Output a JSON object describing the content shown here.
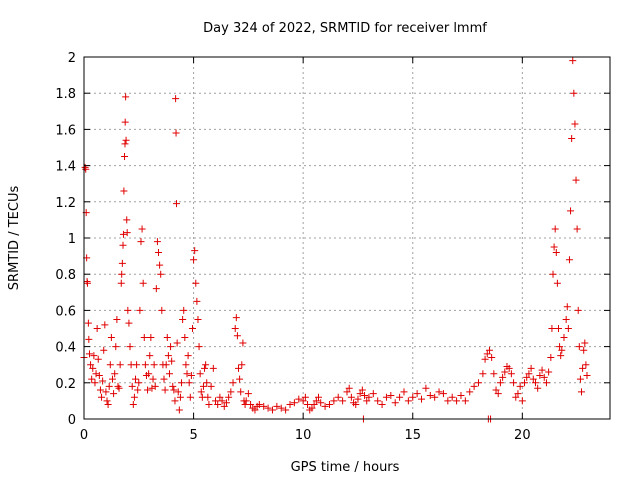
{
  "chart_data": {
    "type": "scatter",
    "title": "Day 324 of 2022, SRMTID for receiver lmmf",
    "xlabel": "GPS time / hours",
    "ylabel": "SRMTID / TECUs",
    "xlim": [
      0,
      24
    ],
    "ylim": [
      0,
      2
    ],
    "xticks": [
      0,
      5,
      10,
      15,
      20
    ],
    "xtick_labels": [
      "0",
      "5",
      "10",
      "15",
      "20"
    ],
    "yticks": [
      0,
      0.2,
      0.4,
      0.6,
      0.8,
      1,
      1.2,
      1.4,
      1.6,
      1.8,
      2
    ],
    "ytick_labels": [
      "0",
      "0.2",
      "0.4",
      "0.6",
      "0.8",
      "1",
      "1.2",
      "1.4",
      "1.6",
      "1.8",
      "2"
    ],
    "grid": true,
    "marker": "+",
    "color": "#e00000",
    "series": [
      {
        "name": "SRMTID",
        "points": [
          [
            0.0,
            0.34
          ],
          [
            0.05,
            1.39
          ],
          [
            0.08,
            1.38
          ],
          [
            0.1,
            1.14
          ],
          [
            0.12,
            0.89
          ],
          [
            0.14,
            0.76
          ],
          [
            0.16,
            0.75
          ],
          [
            0.2,
            0.53
          ],
          [
            0.22,
            0.44
          ],
          [
            0.25,
            0.36
          ],
          [
            0.3,
            0.3
          ],
          [
            0.35,
            0.22
          ],
          [
            0.4,
            0.28
          ],
          [
            0.45,
            0.35
          ],
          [
            0.5,
            0.2
          ],
          [
            0.55,
            0.25
          ],
          [
            0.6,
            0.5
          ],
          [
            0.65,
            0.33
          ],
          [
            0.7,
            0.24
          ],
          [
            0.75,
            0.16
          ],
          [
            0.8,
            0.12
          ],
          [
            0.85,
            0.21
          ],
          [
            0.9,
            0.38
          ],
          [
            0.95,
            0.52
          ],
          [
            1.0,
            0.15
          ],
          [
            1.05,
            0.1
          ],
          [
            1.1,
            0.08
          ],
          [
            1.15,
            0.18
          ],
          [
            1.2,
            0.3
          ],
          [
            1.25,
            0.45
          ],
          [
            1.3,
            0.22
          ],
          [
            1.35,
            0.14
          ],
          [
            1.4,
            0.25
          ],
          [
            1.45,
            0.4
          ],
          [
            1.5,
            0.55
          ],
          [
            1.55,
            0.18
          ],
          [
            1.6,
            0.17
          ],
          [
            1.65,
            0.3
          ],
          [
            1.7,
            0.75
          ],
          [
            1.72,
            0.8
          ],
          [
            1.75,
            0.86
          ],
          [
            1.78,
            0.96
          ],
          [
            1.8,
            1.02
          ],
          [
            1.82,
            1.26
          ],
          [
            1.85,
            1.45
          ],
          [
            1.87,
            1.52
          ],
          [
            1.88,
            1.64
          ],
          [
            1.9,
            1.78
          ],
          [
            1.92,
            1.54
          ],
          [
            1.95,
            1.1
          ],
          [
            1.97,
            1.03
          ],
          [
            2.0,
            0.6
          ],
          [
            2.05,
            0.53
          ],
          [
            2.1,
            0.4
          ],
          [
            2.15,
            0.3
          ],
          [
            2.2,
            0.18
          ],
          [
            2.25,
            0.08
          ],
          [
            2.3,
            0.12
          ],
          [
            2.35,
            0.22
          ],
          [
            2.4,
            0.3
          ],
          [
            2.45,
            0.16
          ],
          [
            2.5,
            0.2
          ],
          [
            2.55,
            0.6
          ],
          [
            2.6,
            0.98
          ],
          [
            2.65,
            1.05
          ],
          [
            2.7,
            0.75
          ],
          [
            2.75,
            0.45
          ],
          [
            2.8,
            0.3
          ],
          [
            2.85,
            0.24
          ],
          [
            2.9,
            0.16
          ],
          [
            2.95,
            0.25
          ],
          [
            3.0,
            0.35
          ],
          [
            3.05,
            0.45
          ],
          [
            3.1,
            0.17
          ],
          [
            3.15,
            0.22
          ],
          [
            3.2,
            0.3
          ],
          [
            3.25,
            0.18
          ],
          [
            3.3,
            0.72
          ],
          [
            3.35,
            0.98
          ],
          [
            3.4,
            0.92
          ],
          [
            3.45,
            0.85
          ],
          [
            3.5,
            0.8
          ],
          [
            3.55,
            0.6
          ],
          [
            3.6,
            0.3
          ],
          [
            3.65,
            0.22
          ],
          [
            3.7,
            0.16
          ],
          [
            3.75,
            0.3
          ],
          [
            3.8,
            0.45
          ],
          [
            3.85,
            0.35
          ],
          [
            3.9,
            0.25
          ],
          [
            3.95,
            0.4
          ],
          [
            4.0,
            0.32
          ],
          [
            4.05,
            0.18
          ],
          [
            4.1,
            0.16
          ],
          [
            4.15,
            0.1
          ],
          [
            4.18,
            1.77
          ],
          [
            4.2,
            1.58
          ],
          [
            4.22,
            1.19
          ],
          [
            4.25,
            0.42
          ],
          [
            4.3,
            0.15
          ],
          [
            4.35,
            0.05
          ],
          [
            4.4,
            0.12
          ],
          [
            4.45,
            0.2
          ],
          [
            4.5,
            0.55
          ],
          [
            4.55,
            0.6
          ],
          [
            4.6,
            0.45
          ],
          [
            4.65,
            0.3
          ],
          [
            4.7,
            0.25
          ],
          [
            4.75,
            0.35
          ],
          [
            4.8,
            0.2
          ],
          [
            4.85,
            0.12
          ],
          [
            4.9,
            0.24
          ],
          [
            4.95,
            0.5
          ],
          [
            5.0,
            0.88
          ],
          [
            5.05,
            0.93
          ],
          [
            5.1,
            0.75
          ],
          [
            5.15,
            0.65
          ],
          [
            5.2,
            0.55
          ],
          [
            5.25,
            0.4
          ],
          [
            5.3,
            0.25
          ],
          [
            5.35,
            0.15
          ],
          [
            5.4,
            0.12
          ],
          [
            5.45,
            0.18
          ],
          [
            5.5,
            0.28
          ],
          [
            5.55,
            0.3
          ],
          [
            5.6,
            0.2
          ],
          [
            5.65,
            0.12
          ],
          [
            5.7,
            0.08
          ],
          [
            5.8,
            0.18
          ],
          [
            5.9,
            0.28
          ],
          [
            6.0,
            0.1
          ],
          [
            6.1,
            0.08
          ],
          [
            6.2,
            0.12
          ],
          [
            6.3,
            0.1
          ],
          [
            6.4,
            0.07
          ],
          [
            6.5,
            0.09
          ],
          [
            6.6,
            0.12
          ],
          [
            6.7,
            0.15
          ],
          [
            6.8,
            0.2
          ],
          [
            6.9,
            0.5
          ],
          [
            6.95,
            0.56
          ],
          [
            7.0,
            0.46
          ],
          [
            7.05,
            0.28
          ],
          [
            7.1,
            0.22
          ],
          [
            7.15,
            0.15
          ],
          [
            7.2,
            0.3
          ],
          [
            7.25,
            0.42
          ],
          [
            7.3,
            0.1
          ],
          [
            7.35,
            0.08
          ],
          [
            7.4,
            0.1
          ],
          [
            7.5,
            0.14
          ],
          [
            7.6,
            0.08
          ],
          [
            7.7,
            0.06
          ],
          [
            7.8,
            0.05
          ],
          [
            7.9,
            0.07
          ],
          [
            8.0,
            0.08
          ],
          [
            8.2,
            0.07
          ],
          [
            8.4,
            0.06
          ],
          [
            8.6,
            0.05
          ],
          [
            8.8,
            0.07
          ],
          [
            9.0,
            0.06
          ],
          [
            9.2,
            0.05
          ],
          [
            9.4,
            0.08
          ],
          [
            9.6,
            0.09
          ],
          [
            9.8,
            0.11
          ],
          [
            10.0,
            0.1
          ],
          [
            10.1,
            0.12
          ],
          [
            10.2,
            0.08
          ],
          [
            10.3,
            0.05
          ],
          [
            10.4,
            0.06
          ],
          [
            10.5,
            0.08
          ],
          [
            10.6,
            0.1
          ],
          [
            10.7,
            0.12
          ],
          [
            10.8,
            0.09
          ],
          [
            11.0,
            0.07
          ],
          [
            11.2,
            0.08
          ],
          [
            11.4,
            0.1
          ],
          [
            11.6,
            0.12
          ],
          [
            11.8,
            0.1
          ],
          [
            12.0,
            0.15
          ],
          [
            12.1,
            0.17
          ],
          [
            12.2,
            0.12
          ],
          [
            12.3,
            0.09
          ],
          [
            12.4,
            0.08
          ],
          [
            12.5,
            0.11
          ],
          [
            12.6,
            0.14
          ],
          [
            12.7,
            0.16
          ],
          [
            12.75,
            0.0
          ],
          [
            12.8,
            0.13
          ],
          [
            12.9,
            0.1
          ],
          [
            13.0,
            0.12
          ],
          [
            13.2,
            0.14
          ],
          [
            13.4,
            0.1
          ],
          [
            13.6,
            0.08
          ],
          [
            13.8,
            0.12
          ],
          [
            14.0,
            0.13
          ],
          [
            14.2,
            0.09
          ],
          [
            14.4,
            0.12
          ],
          [
            14.6,
            0.15
          ],
          [
            14.8,
            0.1
          ],
          [
            15.0,
            0.12
          ],
          [
            15.2,
            0.14
          ],
          [
            15.4,
            0.11
          ],
          [
            15.6,
            0.17
          ],
          [
            15.8,
            0.13
          ],
          [
            16.0,
            0.12
          ],
          [
            16.2,
            0.15
          ],
          [
            16.4,
            0.14
          ],
          [
            16.6,
            0.1
          ],
          [
            16.8,
            0.12
          ],
          [
            17.0,
            0.1
          ],
          [
            17.2,
            0.13
          ],
          [
            17.4,
            0.1
          ],
          [
            17.6,
            0.15
          ],
          [
            17.8,
            0.18
          ],
          [
            18.0,
            0.2
          ],
          [
            18.2,
            0.25
          ],
          [
            18.3,
            0.33
          ],
          [
            18.4,
            0.36
          ],
          [
            18.45,
            0.0
          ],
          [
            18.5,
            0.38
          ],
          [
            18.55,
            0.0
          ],
          [
            18.6,
            0.34
          ],
          [
            18.7,
            0.25
          ],
          [
            18.8,
            0.16
          ],
          [
            18.9,
            0.14
          ],
          [
            19.0,
            0.2
          ],
          [
            19.1,
            0.23
          ],
          [
            19.2,
            0.26
          ],
          [
            19.3,
            0.29
          ],
          [
            19.4,
            0.28
          ],
          [
            19.5,
            0.25
          ],
          [
            19.6,
            0.2
          ],
          [
            19.7,
            0.12
          ],
          [
            19.8,
            0.14
          ],
          [
            19.9,
            0.18
          ],
          [
            20.0,
            0.1
          ],
          [
            20.1,
            0.2
          ],
          [
            20.2,
            0.23
          ],
          [
            20.3,
            0.25
          ],
          [
            20.4,
            0.28
          ],
          [
            20.5,
            0.22
          ],
          [
            20.6,
            0.2
          ],
          [
            20.7,
            0.17
          ],
          [
            20.8,
            0.24
          ],
          [
            20.9,
            0.27
          ],
          [
            21.0,
            0.23
          ],
          [
            21.1,
            0.2
          ],
          [
            21.2,
            0.26
          ],
          [
            21.3,
            0.34
          ],
          [
            21.35,
            0.5
          ],
          [
            21.4,
            0.8
          ],
          [
            21.45,
            0.95
          ],
          [
            21.5,
            1.05
          ],
          [
            21.55,
            0.92
          ],
          [
            21.6,
            0.75
          ],
          [
            21.65,
            0.5
          ],
          [
            21.7,
            0.4
          ],
          [
            21.75,
            0.35
          ],
          [
            21.8,
            0.38
          ],
          [
            21.9,
            0.45
          ],
          [
            22.0,
            0.55
          ],
          [
            22.05,
            0.62
          ],
          [
            22.1,
            0.5
          ],
          [
            22.15,
            0.88
          ],
          [
            22.2,
            1.15
          ],
          [
            22.25,
            1.55
          ],
          [
            22.3,
            1.98
          ],
          [
            22.35,
            1.8
          ],
          [
            22.4,
            1.63
          ],
          [
            22.45,
            1.32
          ],
          [
            22.5,
            1.05
          ],
          [
            22.55,
            0.6
          ],
          [
            22.6,
            0.4
          ],
          [
            22.65,
            0.22
          ],
          [
            22.7,
            0.15
          ],
          [
            22.75,
            0.28
          ],
          [
            22.8,
            0.38
          ],
          [
            22.85,
            0.42
          ],
          [
            22.9,
            0.3
          ],
          [
            22.95,
            0.24
          ]
        ]
      }
    ]
  }
}
